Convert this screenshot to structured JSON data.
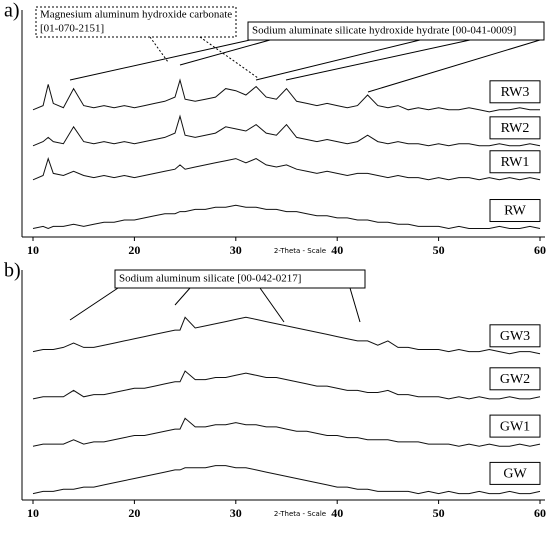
{
  "chart_data": [
    {
      "type": "line",
      "panel_label": "a)",
      "xlabel": "2-Theta - Scale",
      "xlim": [
        10,
        60
      ],
      "xticks": [
        10,
        20,
        30,
        40,
        50,
        60
      ],
      "ylim": [
        0,
        100
      ],
      "annotations": [
        [
          "Magnesium aluminum hydroxide carbonate",
          "[01-070-2151]"
        ],
        [
          "Sodium aluminate silicate hydroxide hydrate [00-041-0009]"
        ]
      ],
      "x": [
        10,
        11,
        11.5,
        12,
        13,
        14,
        15,
        16,
        17,
        18,
        19,
        20,
        21,
        22,
        23,
        24,
        24.5,
        25,
        26,
        27,
        28,
        29,
        30,
        31,
        32,
        33,
        34,
        35,
        36,
        37,
        38,
        39,
        40,
        41,
        42,
        43,
        44,
        45,
        46,
        47,
        48,
        49,
        50,
        51,
        52,
        53,
        54,
        55,
        56,
        57,
        58,
        59,
        60
      ],
      "series": [
        {
          "name": "RW3",
          "color": "#111111",
          "values": [
            60,
            62,
            72,
            63,
            61,
            70,
            62,
            61,
            62,
            61,
            62,
            61,
            62,
            63,
            64,
            66,
            74,
            65,
            64,
            65,
            66,
            70,
            69,
            67,
            71,
            66,
            65,
            70,
            64,
            63,
            62,
            63,
            62,
            61,
            62,
            67,
            62,
            61,
            62,
            60,
            61,
            60,
            61,
            60,
            60,
            61,
            60,
            59,
            60,
            60,
            61,
            60,
            60
          ]
        },
        {
          "name": "RW2",
          "color": "#111111",
          "values": [
            43,
            45,
            47,
            45,
            44,
            52,
            45,
            44,
            45,
            44,
            45,
            44,
            45,
            46,
            47,
            49,
            57,
            48,
            47,
            48,
            49,
            52,
            51,
            50,
            53,
            49,
            48,
            53,
            47,
            46,
            45,
            46,
            45,
            44,
            45,
            48,
            45,
            44,
            45,
            44,
            44,
            43,
            44,
            43,
            44,
            44,
            43,
            43,
            44,
            43,
            43,
            44,
            43
          ]
        },
        {
          "name": "RW1",
          "color": "#111111",
          "values": [
            27,
            29,
            37,
            30,
            29,
            31,
            29,
            28,
            29,
            28,
            29,
            28,
            29,
            30,
            31,
            32,
            34,
            32,
            33,
            34,
            35,
            36,
            37,
            35,
            37,
            34,
            33,
            34,
            32,
            31,
            30,
            31,
            30,
            29,
            30,
            30,
            29,
            28,
            29,
            28,
            28,
            27,
            28,
            27,
            28,
            28,
            27,
            28,
            27,
            28,
            27,
            28,
            27
          ]
        },
        {
          "name": "RW",
          "color": "#111111",
          "values": [
            4,
            5,
            4,
            5,
            5,
            6,
            5,
            6,
            7,
            7,
            8,
            8,
            9,
            10,
            11,
            11,
            12,
            12,
            13,
            13,
            14,
            14,
            15,
            14,
            14,
            13,
            13,
            12,
            12,
            11,
            10,
            10,
            9,
            9,
            8,
            8,
            7,
            7,
            6,
            6,
            5,
            5,
            5,
            4,
            5,
            4,
            4,
            4,
            5,
            4,
            4,
            5,
            4
          ]
        }
      ]
    },
    {
      "type": "line",
      "panel_label": "b)",
      "xlabel": "2-Theta - Scale",
      "xlim": [
        10,
        60
      ],
      "xticks": [
        10,
        20,
        30,
        40,
        50,
        60
      ],
      "ylim": [
        0,
        100
      ],
      "annotations": [
        [
          "Sodium aluminum silicate [00-042-0217]"
        ]
      ],
      "x": [
        10,
        11,
        12,
        13,
        14,
        15,
        16,
        17,
        18,
        19,
        20,
        21,
        22,
        23,
        24,
        24.5,
        25,
        26,
        27,
        28,
        29,
        30,
        31,
        32,
        33,
        34,
        35,
        36,
        37,
        38,
        39,
        40,
        41,
        42,
        43,
        44,
        45,
        46,
        47,
        48,
        49,
        50,
        51,
        52,
        53,
        54,
        55,
        56,
        57,
        58,
        59,
        60
      ],
      "series": [
        {
          "name": "GW3",
          "color": "#111111",
          "values": [
            69,
            70,
            70,
            71,
            73,
            71,
            71,
            72,
            73,
            74,
            75,
            76,
            77,
            78,
            79,
            79,
            85,
            80,
            81,
            82,
            83,
            84,
            85,
            84,
            83,
            82,
            81,
            80,
            79,
            78,
            77,
            76,
            75,
            74,
            74,
            72,
            74,
            71,
            71,
            70,
            70,
            70,
            69,
            70,
            69,
            69,
            70,
            69,
            68,
            69,
            69,
            68
          ]
        },
        {
          "name": "GW2",
          "color": "#111111",
          "values": [
            47,
            48,
            48,
            48,
            51,
            48,
            49,
            49,
            50,
            51,
            52,
            52,
            53,
            54,
            55,
            55,
            60,
            56,
            56,
            57,
            57,
            58,
            59,
            58,
            57,
            57,
            56,
            55,
            54,
            53,
            53,
            52,
            51,
            51,
            50,
            50,
            51,
            49,
            49,
            48,
            48,
            48,
            47,
            48,
            47,
            48,
            47,
            47,
            48,
            47,
            47,
            48
          ]
        },
        {
          "name": "GW1",
          "color": "#111111",
          "values": [
            25,
            26,
            26,
            26,
            28,
            26,
            27,
            27,
            28,
            29,
            30,
            30,
            31,
            32,
            33,
            33,
            38,
            34,
            34,
            35,
            35,
            36,
            35,
            35,
            34,
            34,
            33,
            32,
            32,
            31,
            30,
            30,
            29,
            29,
            28,
            28,
            28,
            27,
            27,
            27,
            26,
            26,
            26,
            25,
            26,
            25,
            26,
            25,
            25,
            26,
            25,
            26
          ]
        },
        {
          "name": "GW",
          "color": "#111111",
          "values": [
            3,
            4,
            4,
            5,
            5,
            6,
            6,
            7,
            8,
            9,
            10,
            11,
            12,
            13,
            14,
            14,
            15,
            15,
            15,
            16,
            16,
            15,
            15,
            14,
            13,
            12,
            11,
            10,
            9,
            8,
            7,
            6,
            6,
            5,
            5,
            4,
            4,
            4,
            4,
            3,
            4,
            3,
            4,
            3,
            3,
            4,
            3,
            3,
            4,
            3,
            3,
            4
          ]
        }
      ]
    }
  ]
}
